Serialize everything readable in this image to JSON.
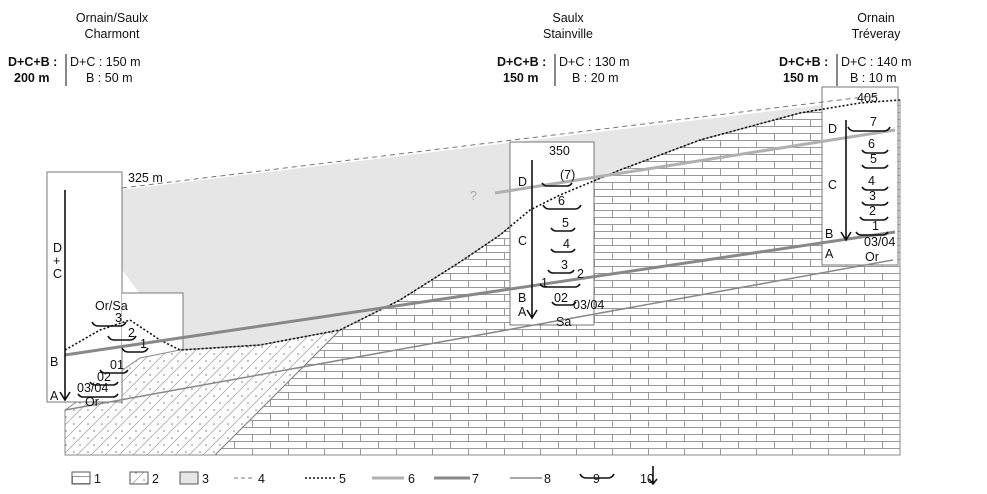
{
  "sites": [
    {
      "river": "Ornain/Saulx",
      "place": "Charmont",
      "total_label": "D+C+B :",
      "total": "200 m",
      "dc": "D+C : 150 m",
      "b": "B : 50 m",
      "summit": "325 m",
      "units": [
        "D",
        "+",
        "C",
        "B",
        "A"
      ],
      "terraces": [
        "Or/Sa",
        "3",
        "2",
        "1",
        "01",
        "02",
        "03/04",
        "Or"
      ]
    },
    {
      "river": "Saulx",
      "place": "Stainville",
      "total_label": "D+C+B :",
      "total": "150 m",
      "dc": "D+C : 130 m",
      "b": "B : 20 m",
      "summit": "350",
      "units": [
        "D",
        "C",
        "B",
        "A"
      ],
      "terraces": [
        "(7)",
        "6",
        "5",
        "4",
        "3",
        "2",
        "1",
        "02",
        "03/04",
        "Sa"
      ]
    },
    {
      "river": "Ornain",
      "place": "Tréveray",
      "total_label": "D+C+B :",
      "total": "150 m",
      "dc": "D+C : 140 m",
      "b": "B : 10 m",
      "summit": "405",
      "units": [
        "D",
        "C",
        "B",
        "A"
      ],
      "terraces": [
        "7",
        "6",
        "5",
        "4",
        "3",
        "2",
        "1",
        "03/04",
        "Or"
      ]
    }
  ],
  "question_mark": "?",
  "legend": [
    "1",
    "2",
    "3",
    "4",
    "5",
    "6",
    "7",
    "8",
    "9",
    "10"
  ]
}
